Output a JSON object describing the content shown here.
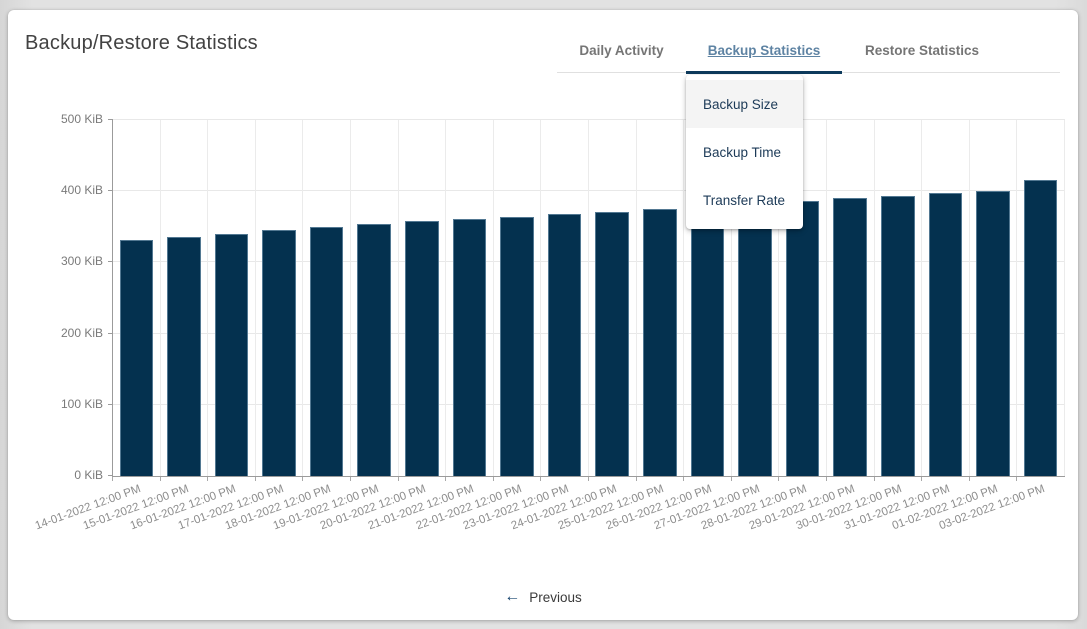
{
  "page": {
    "title": "Backup/Restore Statistics"
  },
  "tabs": [
    {
      "label": "Daily Activity",
      "active": false
    },
    {
      "label": "Backup Statistics",
      "active": true
    },
    {
      "label": "Restore Statistics",
      "active": false
    }
  ],
  "dropdown": {
    "items": [
      {
        "label": "Backup Size",
        "highlighted": true
      },
      {
        "label": "Backup Time",
        "highlighted": false
      },
      {
        "label": "Transfer Rate",
        "highlighted": false
      }
    ]
  },
  "pager": {
    "arrow_icon": "←",
    "previous_label": "Previous"
  },
  "colors": {
    "bar": "#04314f",
    "accent_underline": "#0d3a5c",
    "active_tab_text": "#5e83a3",
    "inactive_tab_text": "#757575",
    "grid": "#e8e8e8",
    "axis": "#9b9b9b",
    "page_background": "#e2e2e2"
  },
  "chart_data": {
    "type": "bar",
    "title": "Backup Size",
    "unit": "KiB",
    "ylim": [
      0,
      500
    ],
    "grid": true,
    "legend": "none",
    "yticks": [
      {
        "value": 0,
        "label": "0 KiB"
      },
      {
        "value": 100,
        "label": "100 KiB"
      },
      {
        "value": 200,
        "label": "200 KiB"
      },
      {
        "value": 300,
        "label": "300 KiB"
      },
      {
        "value": 400,
        "label": "400 KiB"
      },
      {
        "value": 500,
        "label": "500 KiB"
      }
    ],
    "categories": [
      "14-01-2022 12:00 PM",
      "15-01-2022 12:00 PM",
      "16-01-2022 12:00 PM",
      "17-01-2022 12:00 PM",
      "18-01-2022 12:00 PM",
      "19-01-2022 12:00 PM",
      "20-01-2022 12:00 PM",
      "21-01-2022 12:00 PM",
      "22-01-2022 12:00 PM",
      "23-01-2022 12:00 PM",
      "24-01-2022 12:00 PM",
      "25-01-2022 12:00 PM",
      "26-01-2022 12:00 PM",
      "27-01-2022 12:00 PM",
      "28-01-2022 12:00 PM",
      "29-01-2022 12:00 PM",
      "30-01-2022 12:00 PM",
      "31-01-2022 12:00 PM",
      "01-02-2022 12:00 PM",
      "03-02-2022 12:00 PM"
    ],
    "values": [
      332,
      336,
      340,
      346,
      350,
      354,
      358,
      361,
      364,
      368,
      371,
      375,
      378,
      382,
      386,
      390,
      393,
      397,
      400,
      416
    ]
  }
}
